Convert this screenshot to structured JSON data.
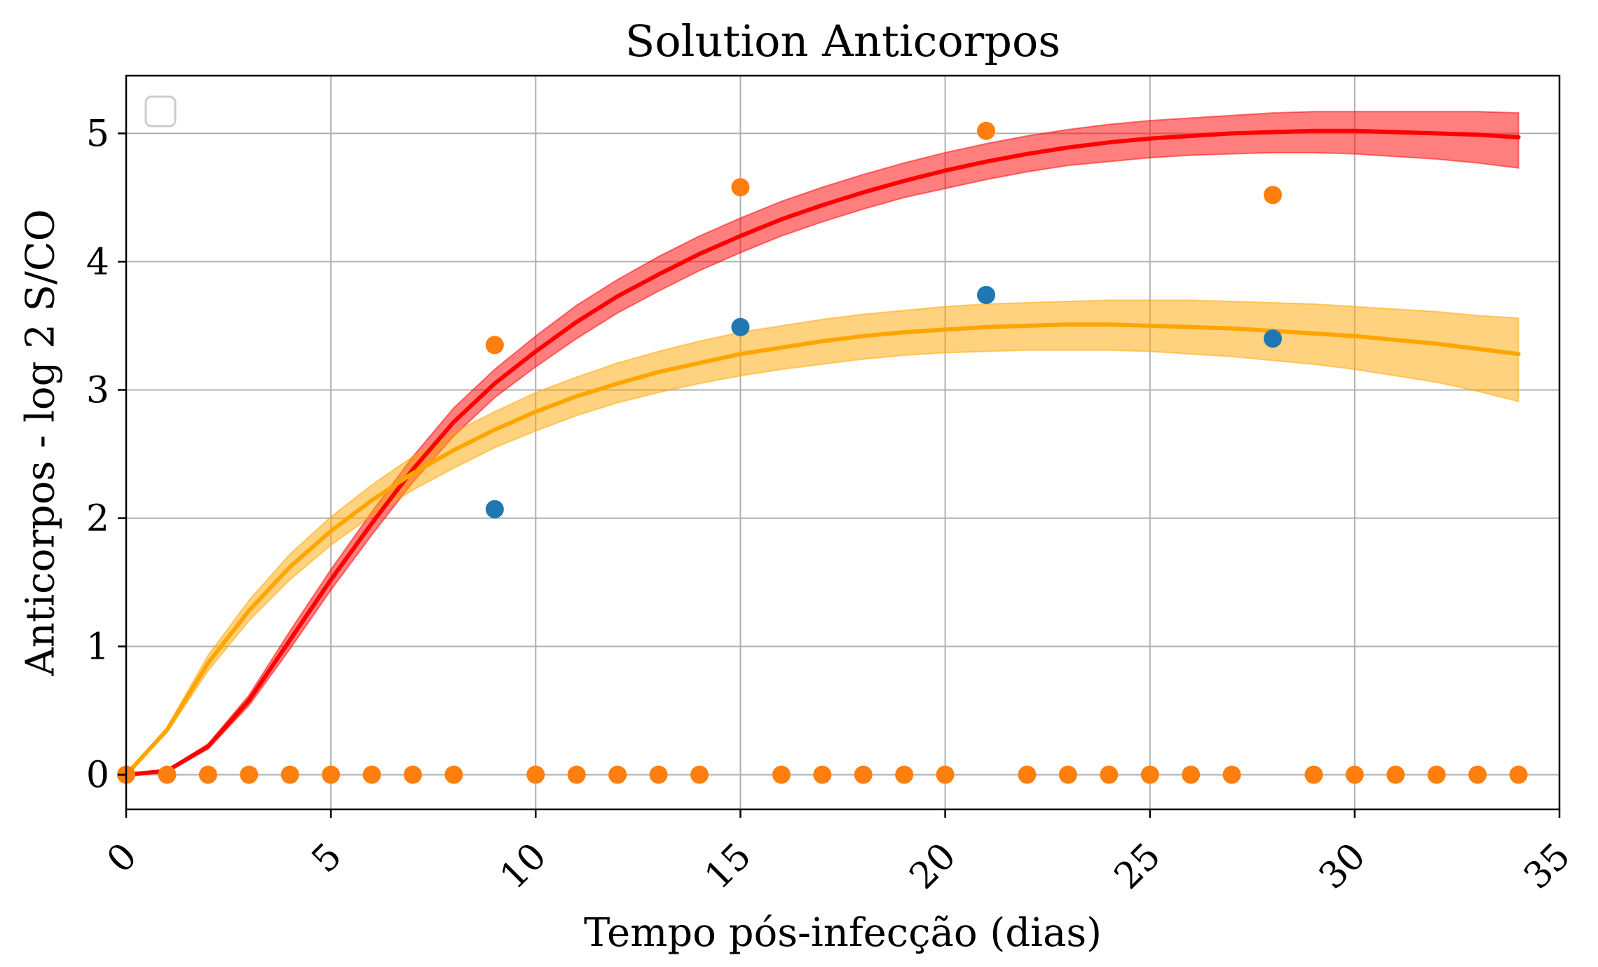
{
  "chart_data": {
    "type": "line",
    "title": "Solution Anticorpos",
    "xlabel": "Tempo pós-infecção (dias)",
    "ylabel": "Anticorpos - log 2 S/CO",
    "xlim": [
      0,
      35
    ],
    "ylim": [
      -0.27,
      5.45
    ],
    "xticks": [
      0,
      5,
      10,
      15,
      20,
      25,
      30,
      35
    ],
    "yticks": [
      0,
      1,
      2,
      3,
      4,
      5
    ],
    "grid": true,
    "legend": "top-left (empty)",
    "series": [
      {
        "kind": "band-line",
        "color": "#ff0000",
        "fill": "#ff0000",
        "x": [
          0,
          1,
          2,
          3,
          4,
          5,
          6,
          7,
          8,
          9,
          10,
          11,
          12,
          13,
          14,
          15,
          16,
          17,
          18,
          19,
          20,
          21,
          22,
          23,
          24,
          25,
          26,
          27,
          28,
          29,
          30,
          31,
          32,
          33,
          34
        ],
        "y": [
          0.0,
          0.03,
          0.22,
          0.58,
          1.05,
          1.52,
          1.96,
          2.38,
          2.75,
          3.05,
          3.3,
          3.53,
          3.73,
          3.9,
          4.06,
          4.2,
          4.33,
          4.44,
          4.54,
          4.63,
          4.71,
          4.78,
          4.84,
          4.89,
          4.93,
          4.96,
          4.98,
          5.0,
          5.01,
          5.02,
          5.02,
          5.01,
          5.0,
          4.99,
          4.97
        ],
        "lower": [
          0.0,
          0.02,
          0.2,
          0.54,
          0.98,
          1.44,
          1.87,
          2.28,
          2.64,
          2.94,
          3.18,
          3.4,
          3.6,
          3.77,
          3.93,
          4.07,
          4.2,
          4.31,
          4.41,
          4.5,
          4.57,
          4.64,
          4.7,
          4.75,
          4.78,
          4.81,
          4.83,
          4.84,
          4.85,
          4.85,
          4.84,
          4.82,
          4.8,
          4.77,
          4.73
        ],
        "upper": [
          0.0,
          0.04,
          0.24,
          0.62,
          1.12,
          1.6,
          2.05,
          2.48,
          2.86,
          3.16,
          3.42,
          3.66,
          3.86,
          4.04,
          4.2,
          4.34,
          4.47,
          4.58,
          4.68,
          4.77,
          4.85,
          4.92,
          4.98,
          5.03,
          5.07,
          5.1,
          5.12,
          5.14,
          5.16,
          5.17,
          5.17,
          5.17,
          5.17,
          5.17,
          5.16
        ]
      },
      {
        "kind": "band-line",
        "color": "#ffa500",
        "fill": "#ffa500",
        "x": [
          0,
          1,
          2,
          3,
          4,
          5,
          6,
          7,
          8,
          9,
          10,
          11,
          12,
          13,
          14,
          15,
          16,
          17,
          18,
          19,
          20,
          21,
          22,
          23,
          24,
          25,
          26,
          27,
          28,
          29,
          30,
          31,
          32,
          33,
          34
        ],
        "y": [
          0.0,
          0.35,
          0.87,
          1.28,
          1.62,
          1.9,
          2.14,
          2.35,
          2.53,
          2.69,
          2.83,
          2.95,
          3.05,
          3.14,
          3.21,
          3.28,
          3.33,
          3.38,
          3.42,
          3.45,
          3.47,
          3.49,
          3.5,
          3.51,
          3.51,
          3.5,
          3.49,
          3.48,
          3.46,
          3.44,
          3.42,
          3.39,
          3.36,
          3.32,
          3.28
        ],
        "lower": [
          0.0,
          0.33,
          0.81,
          1.2,
          1.52,
          1.79,
          2.02,
          2.22,
          2.39,
          2.55,
          2.68,
          2.8,
          2.9,
          2.98,
          3.05,
          3.11,
          3.16,
          3.2,
          3.24,
          3.27,
          3.29,
          3.3,
          3.31,
          3.31,
          3.31,
          3.3,
          3.28,
          3.26,
          3.23,
          3.2,
          3.16,
          3.11,
          3.06,
          2.99,
          2.91
        ],
        "upper": [
          0.0,
          0.37,
          0.93,
          1.36,
          1.72,
          2.01,
          2.26,
          2.48,
          2.67,
          2.83,
          2.98,
          3.1,
          3.21,
          3.3,
          3.38,
          3.45,
          3.5,
          3.55,
          3.59,
          3.62,
          3.65,
          3.67,
          3.68,
          3.69,
          3.7,
          3.7,
          3.7,
          3.69,
          3.68,
          3.67,
          3.65,
          3.63,
          3.61,
          3.58,
          3.56
        ]
      },
      {
        "kind": "scatter",
        "color": "#1f77b4",
        "x": [
          9,
          15,
          21,
          28
        ],
        "y": [
          2.07,
          3.49,
          3.74,
          3.4
        ]
      },
      {
        "kind": "scatter",
        "color": "#ff7f0e",
        "x": [
          0,
          1,
          2,
          3,
          4,
          5,
          6,
          7,
          8,
          9,
          10,
          11,
          12,
          13,
          14,
          15,
          16,
          17,
          18,
          19,
          20,
          21,
          22,
          23,
          24,
          25,
          26,
          27,
          28,
          29,
          30,
          31,
          32,
          33,
          34
        ],
        "y": [
          0,
          0,
          0,
          0,
          0,
          0,
          0,
          0,
          0,
          3.35,
          0,
          0,
          0,
          0,
          0,
          4.58,
          0,
          0,
          0,
          0,
          0,
          5.02,
          0,
          0,
          0,
          0,
          0,
          0,
          4.52,
          0,
          0,
          0,
          0,
          0,
          0
        ]
      }
    ]
  }
}
